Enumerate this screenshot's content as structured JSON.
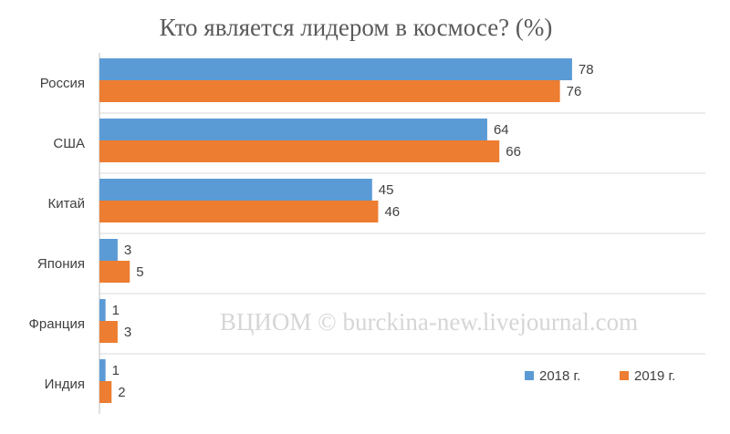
{
  "chart_data": {
    "type": "bar",
    "orientation": "horizontal",
    "title": "Кто является лидером в космосе? (%)",
    "categories": [
      "Россия",
      "США",
      "Китай",
      "Япония",
      "Франция",
      "Индия"
    ],
    "series": [
      {
        "name": "2018 г.",
        "color": "#5b9bd5",
        "values": [
          78,
          64,
          45,
          3,
          1,
          1
        ]
      },
      {
        "name": "2019 г.",
        "color": "#ed7d31",
        "values": [
          76,
          66,
          46,
          5,
          3,
          2
        ]
      }
    ],
    "xlim": [
      0,
      100
    ],
    "grid": "horizontal category separators",
    "legend_position": "bottom-right",
    "data_labels": true
  },
  "watermark": "ВЦИОМ © burckina-new.livejournal.com",
  "colors": {
    "gridline": "#d9d9d9",
    "axis": "#bfbfbf",
    "text": "#404040",
    "title": "#5a5a5a"
  }
}
